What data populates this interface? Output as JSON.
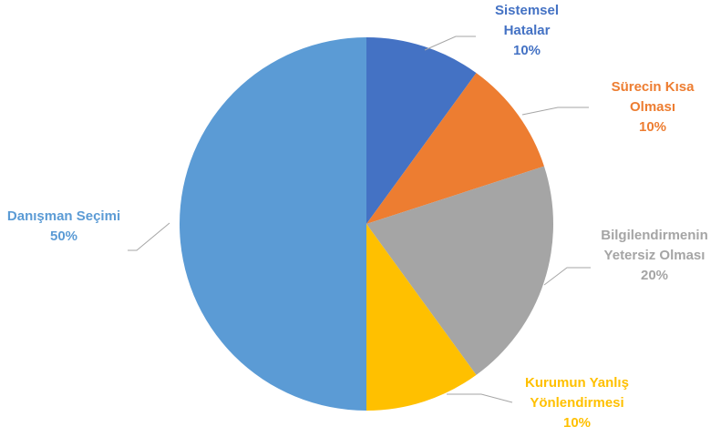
{
  "chart_data": {
    "type": "pie",
    "title": "",
    "start_angle_deg": 0,
    "direction": "clockwise",
    "slices": [
      {
        "label_lines": [
          "Sistemsel",
          "Hatalar"
        ],
        "value": 10,
        "percent_label": "10%",
        "color": "#4472c4"
      },
      {
        "label_lines": [
          "Sürecin Kısa",
          "Olması"
        ],
        "value": 10,
        "percent_label": "10%",
        "color": "#ed7d31"
      },
      {
        "label_lines": [
          "Bilgilendirmenin",
          "Yetersiz Olması"
        ],
        "value": 20,
        "percent_label": "20%",
        "color": "#a5a5a5"
      },
      {
        "label_lines": [
          "Kurumun Yanlış",
          "Yönlendirmesi"
        ],
        "value": 10,
        "percent_label": "10%",
        "color": "#ffc000"
      },
      {
        "label_lines": [
          "Danışman Seçimi"
        ],
        "value": 50,
        "percent_label": "50%",
        "color": "#5b9bd5"
      }
    ],
    "legend": "none"
  }
}
